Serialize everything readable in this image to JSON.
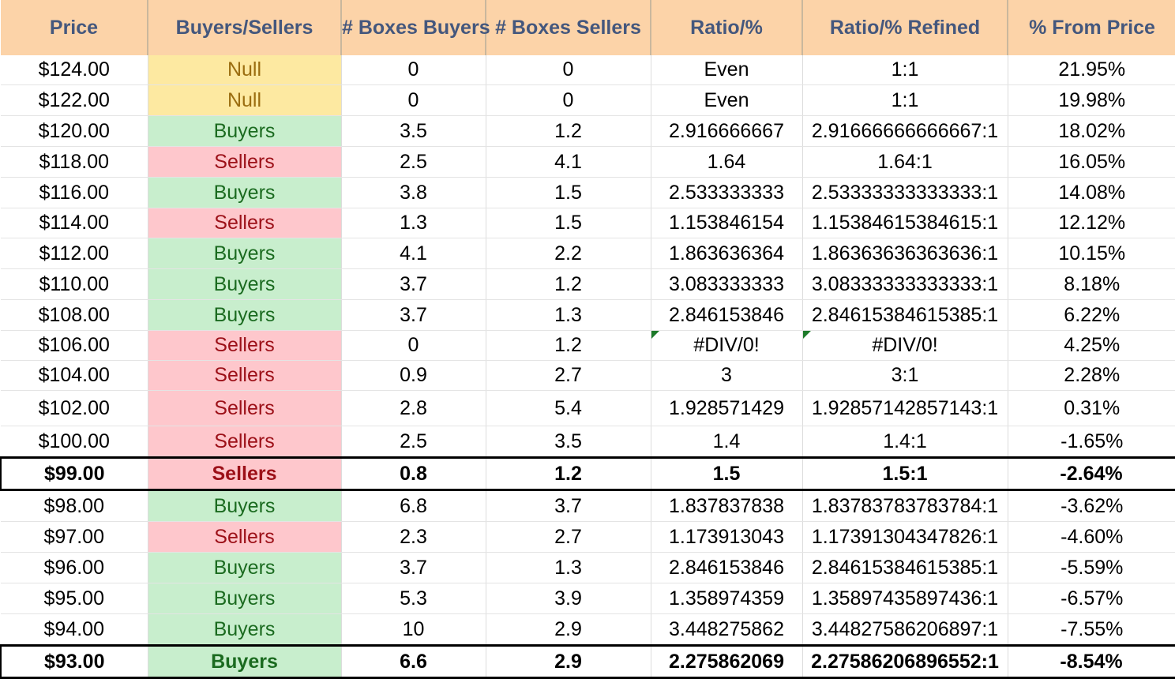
{
  "headers": [
    "Price",
    "Buyers/Sellers",
    "# Boxes Buyers",
    "# Boxes Sellers",
    "Ratio/%",
    "Ratio/% Refined",
    "% From Price"
  ],
  "rows": [
    {
      "price": "$124.00",
      "bs": "Null",
      "buyers": "0",
      "sellers": "0",
      "ratio": "Even",
      "refined": "1:1",
      "pct": "21.95%"
    },
    {
      "price": "$122.00",
      "bs": "Null",
      "buyers": "0",
      "sellers": "0",
      "ratio": "Even",
      "refined": "1:1",
      "pct": "19.98%"
    },
    {
      "price": "$120.00",
      "bs": "Buyers",
      "buyers": "3.5",
      "sellers": "1.2",
      "ratio": "2.916666667",
      "refined": "2.91666666666667:1",
      "pct": "18.02%"
    },
    {
      "price": "$118.00",
      "bs": "Sellers",
      "buyers": "2.5",
      "sellers": "4.1",
      "ratio": "1.64",
      "refined": "1.64:1",
      "pct": "16.05%"
    },
    {
      "price": "$116.00",
      "bs": "Buyers",
      "buyers": "3.8",
      "sellers": "1.5",
      "ratio": "2.533333333",
      "refined": "2.53333333333333:1",
      "pct": "14.08%"
    },
    {
      "price": "$114.00",
      "bs": "Sellers",
      "buyers": "1.3",
      "sellers": "1.5",
      "ratio": "1.153846154",
      "refined": "1.15384615384615:1",
      "pct": "12.12%"
    },
    {
      "price": "$112.00",
      "bs": "Buyers",
      "buyers": "4.1",
      "sellers": "2.2",
      "ratio": "1.863636364",
      "refined": "1.86363636363636:1",
      "pct": "10.15%"
    },
    {
      "price": "$110.00",
      "bs": "Buyers",
      "buyers": "3.7",
      "sellers": "1.2",
      "ratio": "3.083333333",
      "refined": "3.08333333333333:1",
      "pct": "8.18%"
    },
    {
      "price": "$108.00",
      "bs": "Buyers",
      "buyers": "3.7",
      "sellers": "1.3",
      "ratio": "2.846153846",
      "refined": "2.84615384615385:1",
      "pct": "6.22%"
    },
    {
      "price": "$106.00",
      "bs": "Sellers",
      "buyers": "0",
      "sellers": "1.2",
      "ratio": "#DIV/0!",
      "refined": "#DIV/0!",
      "pct": "4.25%",
      "error": true
    },
    {
      "price": "$104.00",
      "bs": "Sellers",
      "buyers": "0.9",
      "sellers": "2.7",
      "ratio": "3",
      "refined": "3:1",
      "pct": "2.28%"
    },
    {
      "price": "$102.00",
      "bs": "Sellers",
      "buyers": "2.8",
      "sellers": "5.4",
      "ratio": "1.928571429",
      "refined": "1.92857142857143:1",
      "pct": "0.31%"
    },
    {
      "price": "$100.00",
      "bs": "Sellers",
      "buyers": "2.5",
      "sellers": "3.5",
      "ratio": "1.4",
      "refined": "1.4:1",
      "pct": "-1.65%"
    },
    {
      "price": "$99.00",
      "bs": "Sellers",
      "buyers": "0.8",
      "sellers": "1.2",
      "ratio": "1.5",
      "refined": "1.5:1",
      "pct": "-2.64%",
      "highlight": true
    },
    {
      "price": "$98.00",
      "bs": "Buyers",
      "buyers": "6.8",
      "sellers": "3.7",
      "ratio": "1.837837838",
      "refined": "1.83783783783784:1",
      "pct": "-3.62%"
    },
    {
      "price": "$97.00",
      "bs": "Sellers",
      "buyers": "2.3",
      "sellers": "2.7",
      "ratio": "1.173913043",
      "refined": "1.17391304347826:1",
      "pct": "-4.60%"
    },
    {
      "price": "$96.00",
      "bs": "Buyers",
      "buyers": "3.7",
      "sellers": "1.3",
      "ratio": "2.846153846",
      "refined": "2.84615384615385:1",
      "pct": "-5.59%"
    },
    {
      "price": "$95.00",
      "bs": "Buyers",
      "buyers": "5.3",
      "sellers": "3.9",
      "ratio": "1.358974359",
      "refined": "1.35897435897436:1",
      "pct": "-6.57%"
    },
    {
      "price": "$94.00",
      "bs": "Buyers",
      "buyers": "10",
      "sellers": "2.9",
      "ratio": "3.448275862",
      "refined": "3.44827586206897:1",
      "pct": "-7.55%"
    },
    {
      "price": "$93.00",
      "bs": "Buyers",
      "buyers": "6.6",
      "sellers": "2.9",
      "ratio": "2.275862069",
      "refined": "2.27586206896552:1",
      "pct": "-8.54%",
      "highlight": true
    }
  ],
  "colors": {
    "header_bg": "#fcd3a8",
    "header_text": "#44577d",
    "null_bg": "#fde9a1",
    "null_text": "#9b6d10",
    "buyers_bg": "#c8eecd",
    "buyers_text": "#1b6b20",
    "sellers_bg": "#fec7cc",
    "sellers_text": "#9c1018",
    "error_flag": "#1d7a2a"
  }
}
